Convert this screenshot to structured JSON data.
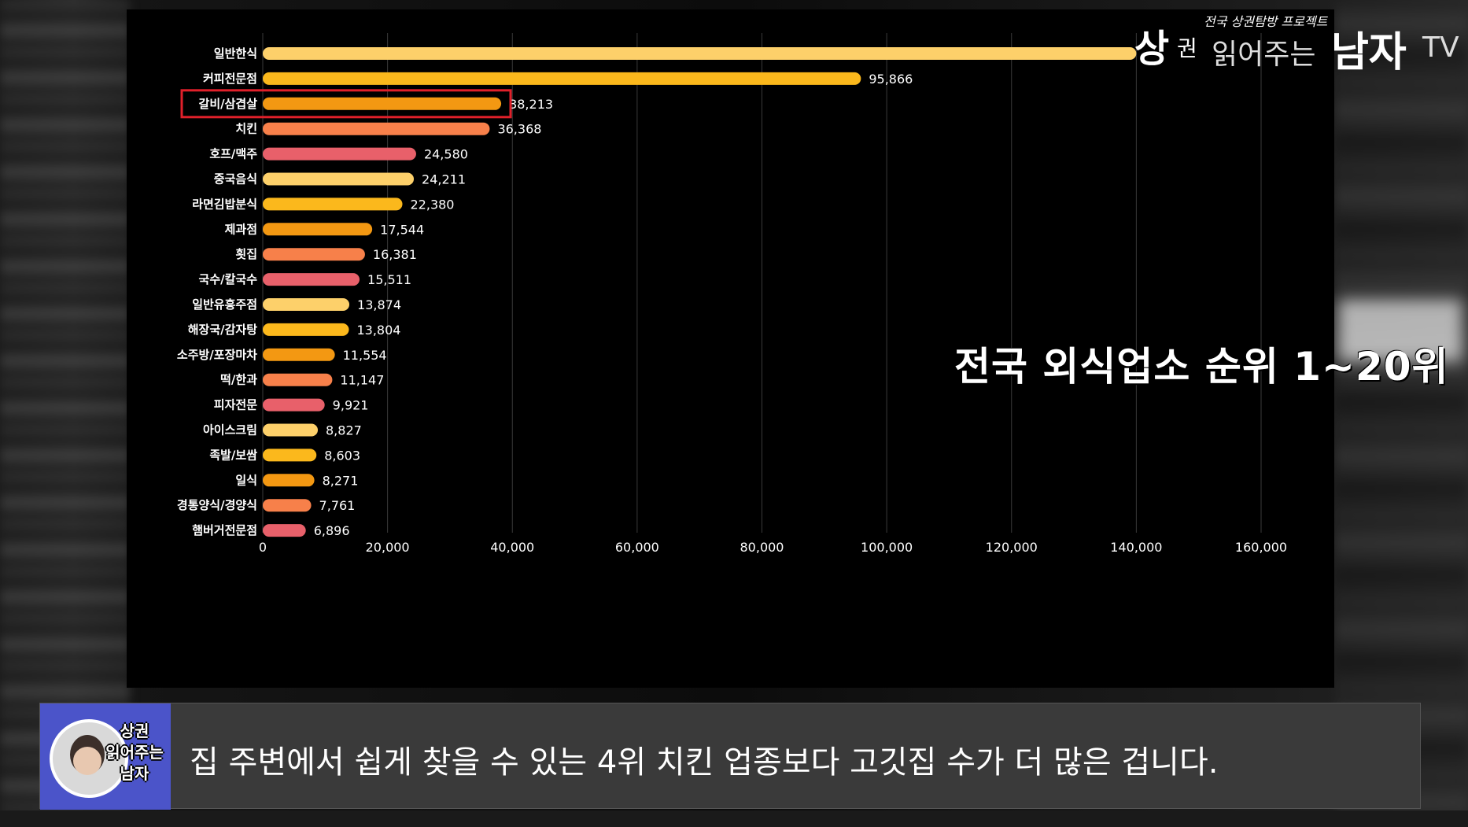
{
  "chart_data": {
    "type": "bar",
    "orientation": "horizontal",
    "title": "전국 외식업소 순위 1~20위",
    "categories": [
      "일반한식",
      "커피전문점",
      "갈비/삼겹살",
      "치킨",
      "호프/맥주",
      "중국음식",
      "라면김밥분식",
      "제과점",
      "횟집",
      "국수/칼국수",
      "일반유흥주점",
      "해장국/감자탕",
      "소주방/포장마차",
      "떡/한과",
      "피자전문",
      "아이스크림",
      "족발/보쌈",
      "일식",
      "경통양식/경양식",
      "햄버거전문점"
    ],
    "values": [
      140000,
      95866,
      38213,
      36368,
      24580,
      24211,
      22380,
      17544,
      16381,
      15511,
      13874,
      13804,
      11554,
      11147,
      9921,
      8827,
      8603,
      8271,
      7761,
      6896
    ],
    "value_labels": [
      "",
      "95,866",
      "38,213",
      "36,368",
      "24,580",
      "24,211",
      "22,380",
      "17,544",
      "16,381",
      "15,511",
      "13,874",
      "13,804",
      "11,554",
      "11,147",
      "9,921",
      "8,827",
      "8,603",
      "8,271",
      "7,761",
      "6,896"
    ],
    "xlim": [
      0,
      160000
    ],
    "x_ticks": [
      0,
      20000,
      40000,
      60000,
      80000,
      100000,
      120000,
      140000,
      160000
    ],
    "x_tick_labels": [
      "0",
      "20,000",
      "40,000",
      "60,000",
      "80,000",
      "100,000",
      "120,000",
      "140,000",
      "160,000"
    ],
    "grid": true,
    "highlighted_category": "갈비/삼겹살",
    "highlight_color": "#e0202a",
    "bar_colors": [
      "#fdd06a",
      "#fbb81c",
      "#f39812",
      "#f7804a",
      "#e8606a"
    ]
  },
  "logo": {
    "tagline": "전국 상권탐방 프로젝트",
    "sang": "상",
    "gwon": "권",
    "middle": "읽어주는",
    "namja": "남자",
    "tv": "TV"
  },
  "subtitle": {
    "avatar_text": [
      "상권",
      "읽어주는",
      "남자"
    ],
    "text": "집 주변에서 쉽게 찾을 수 있는 4위 치킨 업종보다 고깃집 수가 더 많은 겁니다."
  }
}
